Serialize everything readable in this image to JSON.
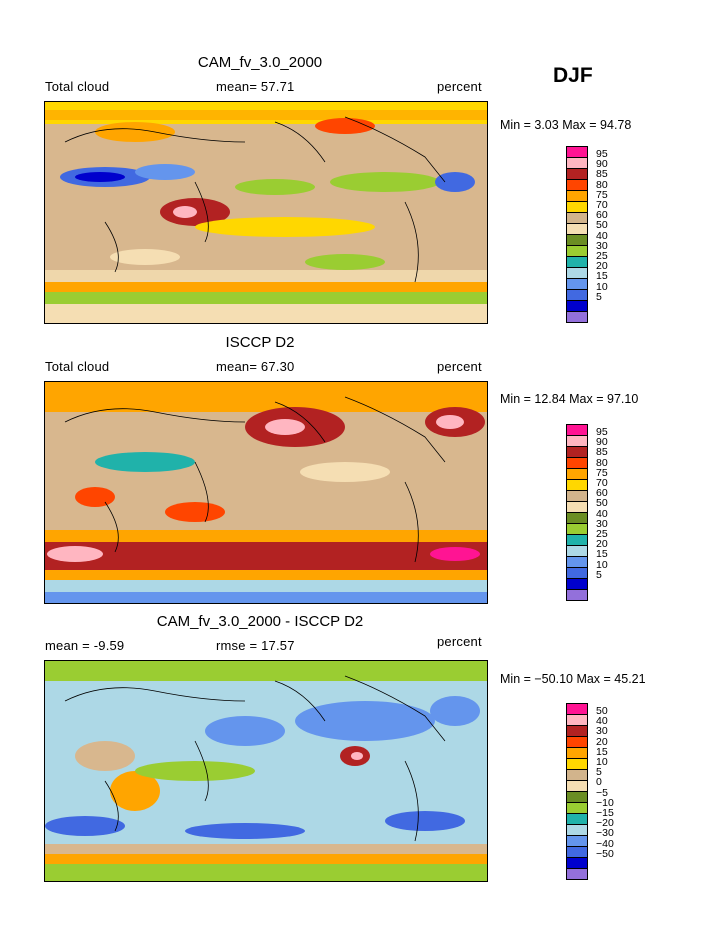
{
  "season": "DJF",
  "panels": [
    {
      "title": "CAM_fv_3.0_2000",
      "left_label": "Total cloud",
      "center_label": "mean=  57.71",
      "right_label": "percent",
      "minmax": "Min =    3.03 Max =  94.78",
      "legend": [
        "95",
        "90",
        "85",
        "80",
        "75",
        "70",
        "60",
        "50",
        "40",
        "30",
        "25",
        "20",
        "15",
        "10",
        "5"
      ]
    },
    {
      "title": "ISCCP D2",
      "left_label": "Total cloud",
      "center_label": "mean=  67.30",
      "right_label": "percent",
      "minmax": "Min =  12.84 Max =  97.10",
      "legend": [
        "95",
        "90",
        "85",
        "80",
        "75",
        "70",
        "60",
        "50",
        "40",
        "30",
        "25",
        "20",
        "15",
        "10",
        "5"
      ]
    },
    {
      "title": "CAM_fv_3.0_2000 - ISCCP D2",
      "left_label": "mean =   -9.59",
      "center_label": "rmse =   17.57",
      "right_label": "percent",
      "minmax": "Min = −50.10 Max =  45.21",
      "legend": [
        "50",
        "40",
        "30",
        "20",
        "15",
        "10",
        "5",
        "0",
        "−5",
        "−10",
        "−15",
        "−20",
        "−30",
        "−40",
        "−50"
      ]
    }
  ],
  "colors": {
    "scale": [
      "#ff1493",
      "#ffb6c1",
      "#b22222",
      "#ff4500",
      "#ffa500",
      "#ffd700",
      "#d2b48c",
      "#f5deb3",
      "#6b8e23",
      "#9acd32",
      "#20b2aa",
      "#add8e6",
      "#6495ed",
      "#4169e1",
      "#0000cd",
      "#9370db"
    ]
  }
}
